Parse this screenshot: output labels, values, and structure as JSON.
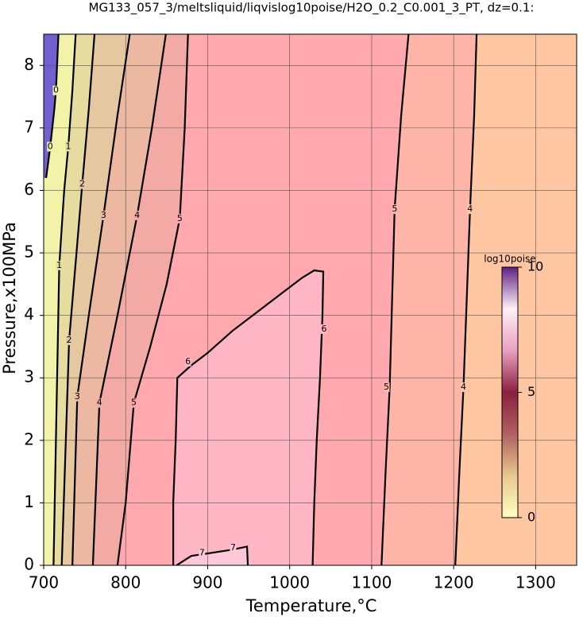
{
  "chart_data": {
    "type": "contour",
    "title": "MG133_057_3/meltsliquid/liqvislog10poise/H2O_0.2_C0.001_3_PT, dz=0.1:",
    "x_label": "Temperature,°C",
    "y_label": "Pressure,x100MPa",
    "xlim": [
      700,
      1350
    ],
    "ylim": [
      0,
      8.5
    ],
    "xticks": [
      700,
      800,
      900,
      1000,
      1100,
      1200,
      1300
    ],
    "yticks": [
      0,
      1,
      2,
      3,
      4,
      5,
      6,
      7,
      8
    ],
    "grid": true,
    "background_color": "#7060d0",
    "contours": [
      {
        "level": 0,
        "fill": "#f2f2a8",
        "x": [
          703,
          708,
          713,
          715,
          718
        ],
        "y": [
          6.2,
          6.7,
          7.3,
          7.6,
          8.5
        ],
        "label_x": [
          708,
          715
        ],
        "label_y": [
          6.7,
          7.6
        ]
      },
      {
        "level": 1,
        "fill": "#e6dca0",
        "x": [
          712,
          719,
          725,
          730,
          735,
          739
        ],
        "y": [
          0,
          4.8,
          6,
          6.7,
          7.6,
          8.5
        ],
        "label_x": [
          730,
          719
        ],
        "label_y": [
          6.7,
          4.8
        ]
      },
      {
        "level": 2,
        "fill": "#e6c8a0",
        "x": [
          722,
          731,
          740,
          747,
          755,
          762
        ],
        "y": [
          0,
          3.6,
          5,
          6.1,
          7.3,
          8.5
        ],
        "label_x": [
          747,
          731
        ],
        "label_y": [
          6.1,
          3.6
        ]
      },
      {
        "level": 3,
        "fill": "#ecb8a2",
        "x": [
          735,
          741,
          755,
          773,
          790,
          805
        ],
        "y": [
          0,
          2.7,
          4,
          5.6,
          7.2,
          8.5
        ],
        "label_x": [
          773,
          741
        ],
        "label_y": [
          5.6,
          2.7
        ]
      },
      {
        "level": 4,
        "fill": "#f4aaa4",
        "x": [
          760,
          768,
          790,
          814,
          832,
          849
        ],
        "y": [
          0,
          2.6,
          4,
          5.6,
          7,
          8.5
        ],
        "label_x": [
          814,
          768
        ],
        "label_y": [
          5.6,
          2.6
        ]
      },
      {
        "level": 5,
        "fill": "#ffa8ae",
        "x": [
          790,
          800,
          810,
          830,
          850,
          866,
          872,
          876
        ],
        "y": [
          0,
          1,
          2.6,
          3.5,
          4.5,
          5.55,
          7,
          8.5
        ],
        "label_x": [
          866,
          810
        ],
        "label_y": [
          5.55,
          2.6
        ]
      },
      {
        "level": 5,
        "fill": "#ffb4a8",
        "x": [
          1112,
          1117,
          1122,
          1128,
          1136,
          1145
        ],
        "y": [
          0,
          1.5,
          2.85,
          5.7,
          7.2,
          8.5
        ],
        "label_x": [
          1128,
          1118
        ],
        "label_y": [
          5.7,
          2.85
        ]
      },
      {
        "level": 4,
        "fill": "#ffc6a2",
        "x": [
          1202,
          1207,
          1212,
          1220,
          1225,
          1228
        ],
        "y": [
          0,
          1.5,
          2.85,
          5.7,
          7.2,
          8.5
        ],
        "label_x": [
          1220,
          1212
        ],
        "label_y": [
          5.7,
          2.85
        ]
      },
      {
        "level": 6,
        "fill": "#ffb6c4",
        "x": [
          1028,
          1030,
          1033,
          1037,
          1040,
          1041,
          1030,
          1015,
          990,
          960,
          930,
          900,
          880,
          863,
          861,
          858,
          858
        ],
        "y": [
          0,
          1,
          2,
          3,
          4,
          4.7,
          4.72,
          4.6,
          4.35,
          4.05,
          3.75,
          3.4,
          3.2,
          3.0,
          2.0,
          1.0,
          0
        ],
        "label_x": [
          1042,
          876
        ],
        "label_y": [
          3.78,
          3.26
        ]
      },
      {
        "level": 7,
        "fill": "#ffc8d8",
        "x": [
          862,
          880,
          930,
          948,
          949
        ],
        "y": [
          0,
          0.15,
          0.25,
          0.3,
          0
        ],
        "label_x": [
          893,
          931
        ],
        "label_y": [
          0.2,
          0.28
        ]
      }
    ],
    "colorbar": {
      "label": "log10poise",
      "lim": [
        0,
        10
      ],
      "ticks": [
        0,
        5,
        10
      ],
      "colors": [
        "#ffffc0",
        "#e8c890",
        "#b06060",
        "#8a2040",
        "#e8a0c0",
        "#fff0f8",
        "#602080"
      ]
    }
  }
}
